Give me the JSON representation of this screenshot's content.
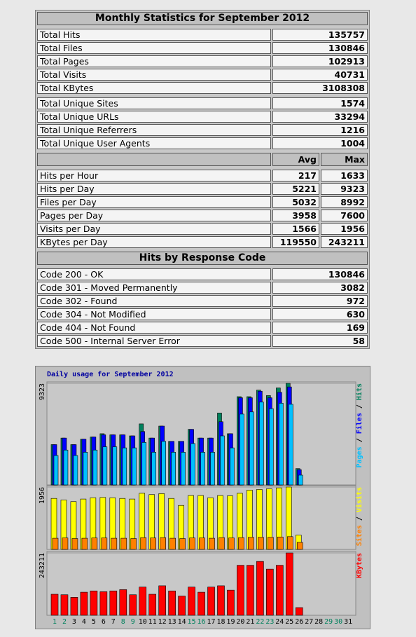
{
  "table": {
    "title": "Monthly Statistics for September 2012",
    "totals": [
      {
        "label": "Total Hits",
        "value": 135757
      },
      {
        "label": "Total Files",
        "value": 130846
      },
      {
        "label": "Total Pages",
        "value": 102913
      },
      {
        "label": "Total Visits",
        "value": 40731
      },
      {
        "label": "Total KBytes",
        "value": 3108308
      }
    ],
    "unique": [
      {
        "label": "Total Unique Sites",
        "value": 1574
      },
      {
        "label": "Total Unique URLs",
        "value": 33294
      },
      {
        "label": "Total Unique Referrers",
        "value": 1216
      },
      {
        "label": "Total Unique User Agents",
        "value": 1004
      }
    ],
    "rate_headers": [
      "Avg",
      "Max"
    ],
    "rates": [
      {
        "label": "Hits per Hour",
        "avg": 217,
        "max": 1633
      },
      {
        "label": "Hits per Day",
        "avg": 5221,
        "max": 9323
      },
      {
        "label": "Files per Day",
        "avg": 5032,
        "max": 8992
      },
      {
        "label": "Pages per Day",
        "avg": 3958,
        "max": 7600
      },
      {
        "label": "Visits per Day",
        "avg": 1566,
        "max": 1956
      },
      {
        "label": "KBytes per Day",
        "avg": 119550,
        "max": 243211
      }
    ],
    "response_title": "Hits by Response Code",
    "responses": [
      {
        "label": "Code 200 - OK",
        "value": 130846
      },
      {
        "label": "Code 301 - Moved Permanently",
        "value": 3082
      },
      {
        "label": "Code 302 - Found",
        "value": 972
      },
      {
        "label": "Code 304 - Not Modified",
        "value": 630
      },
      {
        "label": "Code 404 - Not Found",
        "value": 169
      },
      {
        "label": "Code 500 - Internal Server Error",
        "value": 58
      }
    ]
  },
  "chart_data": [
    {
      "type": "bar",
      "title": "Daily usage for September 2012",
      "legend_separator": " / ",
      "categories": [
        1,
        2,
        3,
        4,
        5,
        6,
        7,
        8,
        9,
        10,
        11,
        12,
        13,
        14,
        15,
        16,
        17,
        18,
        19,
        20,
        21,
        22,
        23,
        24,
        25,
        26,
        27,
        28,
        29,
        30,
        31
      ],
      "series": [
        {
          "name": "Hits",
          "color": "#00805c",
          "values": [
            3700,
            4300,
            3700,
            4200,
            4400,
            4700,
            4600,
            4600,
            4500,
            5600,
            4300,
            5400,
            4000,
            4000,
            5100,
            4300,
            4300,
            6600,
            4700,
            8100,
            8100,
            8700,
            8200,
            8900,
            9323,
            1500,
            null,
            null,
            null,
            null,
            null
          ]
        },
        {
          "name": "Files",
          "color": "#0000ff",
          "values": [
            3700,
            4300,
            3700,
            4200,
            4400,
            4600,
            4600,
            4600,
            4500,
            4900,
            4300,
            5400,
            4000,
            4000,
            5100,
            4300,
            4300,
            5800,
            4700,
            8000,
            8000,
            8600,
            8000,
            8500,
            8992,
            1400,
            null,
            null,
            null,
            null,
            null
          ]
        },
        {
          "name": "Pages",
          "color": "#00c0ff",
          "values": [
            2700,
            3200,
            2700,
            3000,
            3200,
            3500,
            3500,
            3400,
            3400,
            3900,
            3000,
            4000,
            3000,
            3000,
            3800,
            3000,
            3000,
            4500,
            3400,
            6500,
            6700,
            7600,
            7000,
            7500,
            7400,
            900,
            null,
            null,
            null,
            null,
            null
          ]
        }
      ],
      "ylim": [
        0,
        9323
      ],
      "yticks": [
        9323
      ]
    },
    {
      "type": "bar",
      "legend_separator": " / ",
      "categories": [
        1,
        2,
        3,
        4,
        5,
        6,
        7,
        8,
        9,
        10,
        11,
        12,
        13,
        14,
        15,
        16,
        17,
        18,
        19,
        20,
        21,
        22,
        23,
        24,
        25,
        26,
        27,
        28,
        29,
        30,
        31
      ],
      "series": [
        {
          "name": "Visits",
          "color": "#ffff00",
          "values": [
            1600,
            1550,
            1500,
            1580,
            1620,
            1630,
            1620,
            1600,
            1580,
            1760,
            1720,
            1750,
            1600,
            1380,
            1690,
            1690,
            1620,
            1690,
            1680,
            1760,
            1860,
            1880,
            1900,
            1930,
            1956,
            450,
            null,
            null,
            null,
            null,
            null
          ]
        },
        {
          "name": "Sites",
          "color": "#ff8000",
          "values": [
            350,
            360,
            340,
            350,
            360,
            360,
            350,
            350,
            340,
            370,
            360,
            370,
            350,
            340,
            360,
            360,
            350,
            370,
            360,
            370,
            380,
            380,
            380,
            390,
            400,
            220,
            null,
            null,
            null,
            null,
            null
          ]
        }
      ],
      "ylim": [
        0,
        1956
      ],
      "yticks": [
        1956
      ]
    },
    {
      "type": "bar",
      "categories": [
        1,
        2,
        3,
        4,
        5,
        6,
        7,
        8,
        9,
        10,
        11,
        12,
        13,
        14,
        15,
        16,
        17,
        18,
        19,
        20,
        21,
        22,
        23,
        24,
        25,
        26,
        27,
        28,
        29,
        30,
        31
      ],
      "category_colors": [
        "#00805c",
        "#00805c",
        "#000000",
        "#000000",
        "#000000",
        "#000000",
        "#000000",
        "#00805c",
        "#00805c",
        "#000000",
        "#000000",
        "#000000",
        "#000000",
        "#000000",
        "#00805c",
        "#00805c",
        "#000000",
        "#000000",
        "#000000",
        "#000000",
        "#000000",
        "#00805c",
        "#00805c",
        "#000000",
        "#000000",
        "#000000",
        "#000000",
        "#000000",
        "#00805c",
        "#00805c",
        "#000000"
      ],
      "series": [
        {
          "name": "KBytes",
          "color": "#ff0000",
          "values": [
            82000,
            80000,
            70000,
            90000,
            95000,
            92000,
            95000,
            100000,
            80000,
            110000,
            82000,
            115000,
            95000,
            75000,
            110000,
            90000,
            110000,
            115000,
            98000,
            195000,
            195000,
            210000,
            180000,
            195000,
            243211,
            30000,
            null,
            null,
            null,
            null,
            null
          ]
        }
      ],
      "ylim": [
        0,
        243211
      ],
      "yticks": [
        243211
      ]
    }
  ]
}
